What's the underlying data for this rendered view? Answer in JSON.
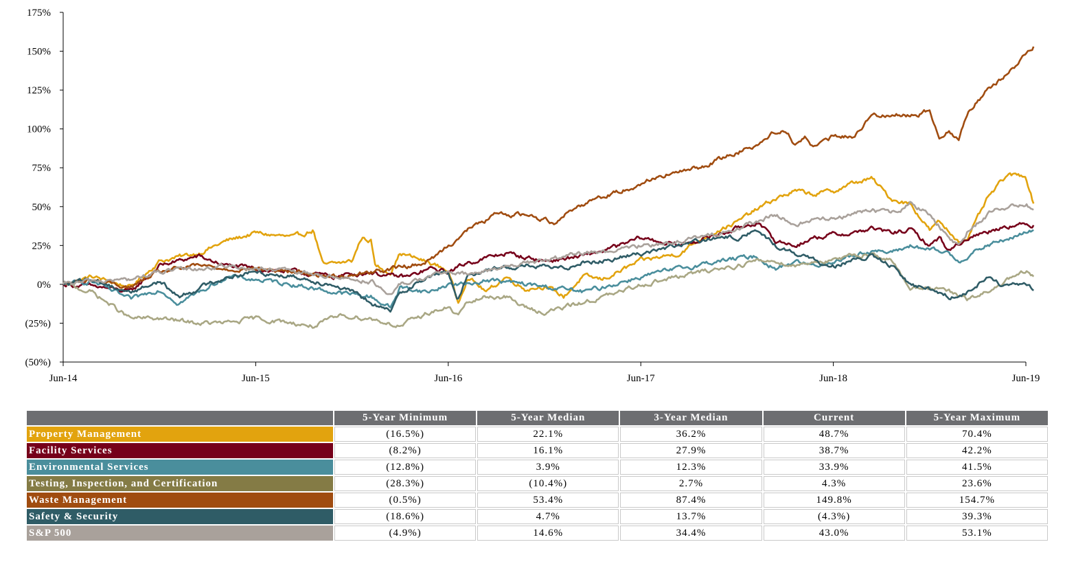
{
  "chart_data": {
    "type": "line",
    "title": "",
    "xlabel": "",
    "ylabel": "",
    "x_ticks": [
      "Jun-14",
      "Jun-15",
      "Jun-16",
      "Jun-17",
      "Jun-18",
      "Jun-19"
    ],
    "y_ticks": [
      "175%",
      "150%",
      "125%",
      "100%",
      "75%",
      "50%",
      "25%",
      "0%",
      "(25%)",
      "(50%)"
    ],
    "ylim": [
      -50,
      175
    ],
    "x_range_years": [
      0,
      5
    ],
    "series": [
      {
        "name": "Property Management",
        "color": "#e2a30e",
        "points": [
          [
            0,
            0
          ],
          [
            0.15,
            5
          ],
          [
            0.35,
            -2
          ],
          [
            0.5,
            15
          ],
          [
            0.7,
            20
          ],
          [
            0.85,
            28
          ],
          [
            1.0,
            33
          ],
          [
            1.2,
            30
          ],
          [
            1.3,
            35
          ],
          [
            1.35,
            12
          ],
          [
            1.5,
            15
          ],
          [
            1.55,
            30
          ],
          [
            1.6,
            28
          ],
          [
            1.62,
            12
          ],
          [
            1.7,
            8
          ],
          [
            1.75,
            20
          ],
          [
            1.9,
            14
          ],
          [
            2.0,
            9
          ],
          [
            2.05,
            -12
          ],
          [
            2.1,
            5
          ],
          [
            2.2,
            -5
          ],
          [
            2.3,
            5
          ],
          [
            2.4,
            -3
          ],
          [
            2.5,
            -1
          ],
          [
            2.6,
            -8
          ],
          [
            2.7,
            5
          ],
          [
            2.8,
            3
          ],
          [
            3.0,
            15
          ],
          [
            3.2,
            20
          ],
          [
            3.3,
            28
          ],
          [
            3.4,
            35
          ],
          [
            3.5,
            40
          ],
          [
            3.6,
            48
          ],
          [
            3.7,
            55
          ],
          [
            3.8,
            60
          ],
          [
            3.9,
            58
          ],
          [
            4.0,
            60
          ],
          [
            4.1,
            65
          ],
          [
            4.2,
            68
          ],
          [
            4.3,
            55
          ],
          [
            4.4,
            52
          ],
          [
            4.5,
            35
          ],
          [
            4.55,
            40
          ],
          [
            4.65,
            28
          ],
          [
            4.7,
            30
          ],
          [
            4.8,
            55
          ],
          [
            4.9,
            70
          ],
          [
            5.0,
            70
          ],
          [
            5.04,
            52
          ]
        ]
      },
      {
        "name": "Facility Services",
        "color": "#76001a",
        "points": [
          [
            0,
            0
          ],
          [
            0.2,
            -2
          ],
          [
            0.35,
            -5
          ],
          [
            0.5,
            12
          ],
          [
            0.7,
            18
          ],
          [
            0.85,
            12
          ],
          [
            1.0,
            10
          ],
          [
            1.2,
            8
          ],
          [
            1.4,
            5
          ],
          [
            1.6,
            8
          ],
          [
            1.7,
            5
          ],
          [
            1.8,
            5
          ],
          [
            1.9,
            10
          ],
          [
            2.0,
            8
          ],
          [
            2.1,
            14
          ],
          [
            2.3,
            20
          ],
          [
            2.5,
            15
          ],
          [
            2.7,
            18
          ],
          [
            2.9,
            25
          ],
          [
            3.0,
            30
          ],
          [
            3.2,
            25
          ],
          [
            3.4,
            32
          ],
          [
            3.6,
            40
          ],
          [
            3.7,
            28
          ],
          [
            3.8,
            25
          ],
          [
            3.9,
            30
          ],
          [
            4.0,
            32
          ],
          [
            4.1,
            33
          ],
          [
            4.2,
            36
          ],
          [
            4.3,
            33
          ],
          [
            4.4,
            35
          ],
          [
            4.5,
            25
          ],
          [
            4.55,
            30
          ],
          [
            4.6,
            22
          ],
          [
            4.7,
            30
          ],
          [
            4.8,
            34
          ],
          [
            4.9,
            38
          ],
          [
            5.0,
            38
          ],
          [
            5.04,
            38
          ]
        ]
      },
      {
        "name": "Environmental Services",
        "color": "#4a8e9c",
        "points": [
          [
            0,
            0
          ],
          [
            0.15,
            2
          ],
          [
            0.35,
            -10
          ],
          [
            0.5,
            -3
          ],
          [
            0.6,
            -12
          ],
          [
            0.75,
            -2
          ],
          [
            0.85,
            5
          ],
          [
            1.0,
            3
          ],
          [
            1.2,
            0
          ],
          [
            1.4,
            -5
          ],
          [
            1.6,
            -8
          ],
          [
            1.7,
            -15
          ],
          [
            1.75,
            -2
          ],
          [
            1.9,
            -5
          ],
          [
            2.0,
            0
          ],
          [
            2.1,
            0
          ],
          [
            2.2,
            3
          ],
          [
            2.4,
            0
          ],
          [
            2.6,
            -3
          ],
          [
            2.7,
            -5
          ],
          [
            2.8,
            -2
          ],
          [
            3.0,
            5
          ],
          [
            3.2,
            10
          ],
          [
            3.4,
            15
          ],
          [
            3.6,
            18
          ],
          [
            3.7,
            10
          ],
          [
            3.8,
            15
          ],
          [
            3.9,
            12
          ],
          [
            4.0,
            15
          ],
          [
            4.2,
            22
          ],
          [
            4.3,
            20
          ],
          [
            4.4,
            25
          ],
          [
            4.5,
            22
          ],
          [
            4.6,
            20
          ],
          [
            4.65,
            15
          ],
          [
            4.8,
            25
          ],
          [
            5.0,
            33
          ],
          [
            5.04,
            35
          ]
        ]
      },
      {
        "name": "Testing, Inspection, and Certification",
        "color": "#a9a784",
        "points": [
          [
            0,
            0
          ],
          [
            0.15,
            -5
          ],
          [
            0.35,
            -22
          ],
          [
            0.5,
            -22
          ],
          [
            0.7,
            -25
          ],
          [
            0.85,
            -25
          ],
          [
            1.0,
            -22
          ],
          [
            1.2,
            -25
          ],
          [
            1.3,
            -27
          ],
          [
            1.45,
            -20
          ],
          [
            1.6,
            -22
          ],
          [
            1.75,
            -27
          ],
          [
            1.9,
            -18
          ],
          [
            2.0,
            -15
          ],
          [
            2.05,
            -20
          ],
          [
            2.1,
            -12
          ],
          [
            2.2,
            -8
          ],
          [
            2.3,
            -8
          ],
          [
            2.4,
            -15
          ],
          [
            2.5,
            -18
          ],
          [
            2.6,
            -15
          ],
          [
            2.75,
            -10
          ],
          [
            2.9,
            -5
          ],
          [
            3.0,
            0
          ],
          [
            3.2,
            5
          ],
          [
            3.4,
            10
          ],
          [
            3.5,
            12
          ],
          [
            3.6,
            15
          ],
          [
            3.7,
            15
          ],
          [
            3.8,
            12
          ],
          [
            3.9,
            15
          ],
          [
            4.0,
            15
          ],
          [
            4.1,
            18
          ],
          [
            4.2,
            20
          ],
          [
            4.3,
            15
          ],
          [
            4.4,
            -2
          ],
          [
            4.5,
            -2
          ],
          [
            4.6,
            -5
          ],
          [
            4.7,
            -10
          ],
          [
            4.8,
            -5
          ],
          [
            4.9,
            2
          ],
          [
            5.0,
            8
          ],
          [
            5.04,
            5
          ]
        ]
      },
      {
        "name": "Waste Management",
        "color": "#a04c10",
        "points": [
          [
            0,
            0
          ],
          [
            0.15,
            3
          ],
          [
            0.35,
            -2
          ],
          [
            0.5,
            8
          ],
          [
            0.7,
            12
          ],
          [
            0.85,
            10
          ],
          [
            1.0,
            10
          ],
          [
            1.2,
            8
          ],
          [
            1.4,
            5
          ],
          [
            1.6,
            8
          ],
          [
            1.7,
            10
          ],
          [
            1.8,
            12
          ],
          [
            1.9,
            15
          ],
          [
            2.0,
            25
          ],
          [
            2.1,
            35
          ],
          [
            2.25,
            45
          ],
          [
            2.4,
            45
          ],
          [
            2.55,
            40
          ],
          [
            2.6,
            45
          ],
          [
            2.75,
            55
          ],
          [
            2.9,
            60
          ],
          [
            3.0,
            65
          ],
          [
            3.1,
            70
          ],
          [
            3.2,
            72
          ],
          [
            3.3,
            75
          ],
          [
            3.4,
            80
          ],
          [
            3.5,
            85
          ],
          [
            3.6,
            90
          ],
          [
            3.7,
            98
          ],
          [
            3.75,
            100
          ],
          [
            3.8,
            90
          ],
          [
            3.85,
            95
          ],
          [
            3.9,
            88
          ],
          [
            4.0,
            95
          ],
          [
            4.1,
            95
          ],
          [
            4.2,
            108
          ],
          [
            4.3,
            110
          ],
          [
            4.4,
            108
          ],
          [
            4.5,
            112
          ],
          [
            4.55,
            95
          ],
          [
            4.6,
            100
          ],
          [
            4.65,
            92
          ],
          [
            4.7,
            112
          ],
          [
            4.8,
            125
          ],
          [
            4.9,
            135
          ],
          [
            5.0,
            148
          ],
          [
            5.04,
            153
          ]
        ]
      },
      {
        "name": "Safety & Security",
        "color": "#2f5c66",
        "points": [
          [
            0,
            0
          ],
          [
            0.15,
            3
          ],
          [
            0.35,
            -5
          ],
          [
            0.5,
            2
          ],
          [
            0.6,
            -8
          ],
          [
            0.75,
            0
          ],
          [
            0.85,
            5
          ],
          [
            1.0,
            8
          ],
          [
            1.2,
            5
          ],
          [
            1.4,
            0
          ],
          [
            1.5,
            -5
          ],
          [
            1.6,
            -12
          ],
          [
            1.7,
            -18
          ],
          [
            1.75,
            -5
          ],
          [
            1.9,
            5
          ],
          [
            2.0,
            8
          ],
          [
            2.05,
            -10
          ],
          [
            2.1,
            5
          ],
          [
            2.2,
            10
          ],
          [
            2.4,
            12
          ],
          [
            2.6,
            10
          ],
          [
            2.7,
            15
          ],
          [
            2.8,
            15
          ],
          [
            3.0,
            20
          ],
          [
            3.2,
            25
          ],
          [
            3.4,
            30
          ],
          [
            3.5,
            30
          ],
          [
            3.6,
            35
          ],
          [
            3.7,
            25
          ],
          [
            3.8,
            20
          ],
          [
            3.9,
            15
          ],
          [
            4.0,
            12
          ],
          [
            4.1,
            15
          ],
          [
            4.2,
            18
          ],
          [
            4.3,
            12
          ],
          [
            4.4,
            0
          ],
          [
            4.5,
            -3
          ],
          [
            4.6,
            -8
          ],
          [
            4.7,
            -5
          ],
          [
            4.8,
            5
          ],
          [
            4.9,
            -2
          ],
          [
            5.0,
            0
          ],
          [
            5.04,
            -4
          ]
        ]
      },
      {
        "name": "S&P 500",
        "color": "#a9a19b",
        "points": [
          [
            0,
            0
          ],
          [
            0.15,
            2
          ],
          [
            0.35,
            3
          ],
          [
            0.5,
            8
          ],
          [
            0.7,
            10
          ],
          [
            0.85,
            12
          ],
          [
            1.0,
            10
          ],
          [
            1.2,
            8
          ],
          [
            1.4,
            5
          ],
          [
            1.6,
            2
          ],
          [
            1.7,
            -8
          ],
          [
            1.75,
            0
          ],
          [
            1.9,
            5
          ],
          [
            2.0,
            8
          ],
          [
            2.1,
            6
          ],
          [
            2.3,
            12
          ],
          [
            2.5,
            15
          ],
          [
            2.7,
            20
          ],
          [
            2.9,
            22
          ],
          [
            3.0,
            25
          ],
          [
            3.2,
            28
          ],
          [
            3.4,
            32
          ],
          [
            3.6,
            40
          ],
          [
            3.7,
            45
          ],
          [
            3.8,
            38
          ],
          [
            3.9,
            42
          ],
          [
            4.0,
            42
          ],
          [
            4.1,
            45
          ],
          [
            4.2,
            48
          ],
          [
            4.3,
            45
          ],
          [
            4.4,
            52
          ],
          [
            4.5,
            45
          ],
          [
            4.6,
            30
          ],
          [
            4.65,
            25
          ],
          [
            4.7,
            35
          ],
          [
            4.8,
            45
          ],
          [
            4.9,
            50
          ],
          [
            5.0,
            52
          ],
          [
            5.04,
            48
          ]
        ]
      }
    ]
  },
  "table": {
    "headers": [
      "",
      "5-Year Minimum",
      "5-Year Median",
      "3-Year Median",
      "Current",
      "5-Year Maximum"
    ],
    "rows": [
      {
        "name": "Property Management",
        "color": "#e2a30e",
        "values": [
          "(16.5%)",
          "22.1%",
          "36.2%",
          "48.7%",
          "70.4%"
        ]
      },
      {
        "name": "Facility Services",
        "color": "#76001a",
        "values": [
          "(8.2%)",
          "16.1%",
          "27.9%",
          "38.7%",
          "42.2%"
        ]
      },
      {
        "name": "Environmental Services",
        "color": "#4a8e9c",
        "values": [
          "(12.8%)",
          "3.9%",
          "12.3%",
          "33.9%",
          "41.5%"
        ]
      },
      {
        "name": "Testing, Inspection, and Certification",
        "color": "#847b45",
        "values": [
          "(28.3%)",
          "(10.4%)",
          "2.7%",
          "4.3%",
          "23.6%"
        ]
      },
      {
        "name": "Waste Management",
        "color": "#a04c10",
        "values": [
          "(0.5%)",
          "53.4%",
          "87.4%",
          "149.8%",
          "154.7%"
        ]
      },
      {
        "name": "Safety & Security",
        "color": "#2f5c66",
        "values": [
          "(18.6%)",
          "4.7%",
          "13.7%",
          "(4.3%)",
          "39.3%"
        ]
      },
      {
        "name": "S&P 500",
        "color": "#a9a19b",
        "values": [
          "(4.9%)",
          "14.6%",
          "34.4%",
          "43.0%",
          "53.1%"
        ]
      }
    ]
  }
}
